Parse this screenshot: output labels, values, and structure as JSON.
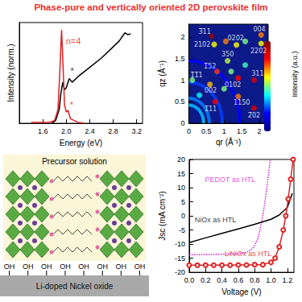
{
  "title": "Phase-pure and vertically oriented 2D perovskite film",
  "chart_data": [
    {
      "type": "line",
      "x_label": "Energy (eV)",
      "y_label": "Intensity (norm.)",
      "xlim": [
        1.2,
        3.3
      ],
      "xticks": [
        1.6,
        {
          "value": 2,
          "label": "2.0"
        },
        2.4,
        2.8,
        3.2
      ],
      "ylim": [
        0,
        1.08
      ],
      "tick_labels": "x",
      "series": [
        {
          "color": "#000000",
          "line_style": "solid",
          "x": [
            1.75,
            1.82,
            1.88,
            1.91,
            1.94,
            1.97,
            2.0,
            2.05,
            2.1,
            2.2,
            2.4,
            2.6,
            2.8,
            2.9,
            3.0,
            3.05,
            3.1
          ],
          "values": [
            0.0,
            0.03,
            0.15,
            0.33,
            0.44,
            0.36,
            0.38,
            0.48,
            0.44,
            0.5,
            0.6,
            0.7,
            0.82,
            0.88,
            0.97,
            0.95,
            0.96
          ]
        },
        {
          "color": "#e02020",
          "line_style": "solid",
          "x": [
            1.4,
            1.7,
            1.8,
            1.86,
            1.9,
            1.92,
            1.94,
            1.97,
            2.0,
            2.03,
            2.07,
            2.2,
            2.3
          ],
          "values": [
            0.01,
            0.01,
            0.03,
            0.15,
            0.7,
            1.0,
            0.7,
            0.2,
            0.12,
            0.14,
            0.05,
            0.01,
            0.0
          ]
        }
      ],
      "annotations": [
        {
          "text": "n=4",
          "x": 2.12,
          "y": 0.88,
          "color": "#e02020"
        },
        {
          "text": "*",
          "x": 2.1,
          "y": 0.56,
          "color": "#000000"
        },
        {
          "text": "*",
          "x": 2.09,
          "y": 0.2,
          "color": "#e02020"
        }
      ]
    },
    {
      "type": "scatter",
      "x_label": "qr (Å⁻¹)",
      "y_label": "qz (Å⁻¹)",
      "xlim": [
        0,
        2.25
      ],
      "xticks": [
        0,
        0.5,
        1,
        1.5,
        2
      ],
      "ylim": [
        0,
        2.3
      ],
      "yticks": [
        0,
        0.5,
        1,
        1.5,
        2
      ],
      "rings": {
        "q": [
          0.42,
          0.58,
          0.95,
          1.45
        ],
        "intensity": [
          0.35,
          0.3,
          0.25,
          0.2
        ]
      },
      "spots": {
        "qr": [
          0.65,
          0.72,
          1.05,
          1.35,
          1.6,
          2.05,
          2.05,
          1.1,
          0.8,
          1.4,
          1.85,
          0.1,
          0.6,
          1.4,
          0.75,
          1.85,
          1.2,
          1.6,
          0.3,
          1.0
        ],
        "qz": [
          2.02,
          1.83,
          1.9,
          1.82,
          1.9,
          2.05,
          1.85,
          1.45,
          1.2,
          1.05,
          1.0,
          1.0,
          0.9,
          0.62,
          0.5,
          0.35,
          1.2,
          1.35,
          0.65,
          0.8
        ],
        "intensity": [
          0.95,
          0.6,
          0.7,
          0.6,
          0.5,
          0.7,
          0.6,
          0.55,
          0.75,
          0.8,
          0.85,
          0.5,
          0.65,
          0.7,
          0.8,
          0.85,
          0.5,
          0.45,
          0.4,
          0.5
        ]
      },
      "labels": [
        {
          "text": "3̅11",
          "qr": 0.45,
          "qz": 2.12
        },
        {
          "text": "2102",
          "qr": 0.38,
          "qz": 1.83
        },
        {
          "text": "0202",
          "qr": 1.33,
          "qz": 1.98
        },
        {
          "text": "004",
          "qr": 2.0,
          "qz": 2.18
        },
        {
          "text": "2202",
          "qr": 1.98,
          "qz": 1.68
        },
        {
          "text": "350",
          "qr": 1.1,
          "qz": 1.6
        },
        {
          "text": "1̅52",
          "qr": 0.6,
          "qz": 1.32
        },
        {
          "text": "0102",
          "qr": 1.25,
          "qz": 0.88
        },
        {
          "text": "311",
          "qr": 1.95,
          "qz": 1.15
        },
        {
          "text": "1̅1̅1",
          "qr": 0.22,
          "qz": 1.12
        },
        {
          "text": "002",
          "qr": 0.62,
          "qz": 0.75
        },
        {
          "text": "1150",
          "qr": 1.5,
          "qz": 0.48
        },
        {
          "text": "1̅11",
          "qr": 0.62,
          "qz": 0.32
        },
        {
          "text": "2̅02",
          "qr": 1.85,
          "qz": 0.18
        }
      ],
      "colorbar": {
        "label": "Intensity (a.u.)",
        "range": [
          0,
          1
        ]
      }
    },
    {
      "type": "line",
      "x_label": "Voltage (V)",
      "y_label": "Jsc (mA cm⁻²)",
      "xlim": [
        0,
        1.28
      ],
      "xticks": [
        {
          "value": 0,
          "label": "0.0"
        },
        0.2,
        0.4,
        0.6,
        0.8,
        {
          "value": 1,
          "label": "1.0"
        },
        1.2
      ],
      "ylim": [
        -20,
        20
      ],
      "yticks": [
        -20,
        -15,
        -10,
        -5,
        0,
        5,
        10,
        15,
        20
      ],
      "series": [
        {
          "color": "#d61ed6",
          "line_style": "dotted",
          "x": [
            0,
            0.2,
            0.4,
            0.6,
            0.7,
            0.78,
            0.84,
            0.88,
            0.91,
            0.94,
            0.97,
            0.99
          ],
          "values": [
            -13.8,
            -13.7,
            -13.6,
            -13.4,
            -13.0,
            -11.5,
            -8.0,
            -3.0,
            2.0,
            8.0,
            15.0,
            20.0
          ]
        },
        {
          "color": "#000000",
          "line_style": "solid",
          "x": [
            0,
            0.2,
            0.4,
            0.6,
            0.8,
            1.0,
            1.1,
            1.2,
            1.26
          ],
          "values": [
            -9.5,
            -7.8,
            -6.2,
            -4.6,
            -3.0,
            -1.2,
            0.3,
            3.0,
            8.0
          ]
        },
        {
          "color": "#e02020",
          "line_style": "solid",
          "marker": "open_circle",
          "x": [
            0,
            0.1,
            0.2,
            0.3,
            0.4,
            0.5,
            0.6,
            0.7,
            0.8,
            0.9,
            1.0,
            1.05,
            1.1,
            1.15,
            1.18,
            1.21,
            1.24,
            1.27
          ],
          "values": [
            -17.5,
            -17.5,
            -17.5,
            -17.5,
            -17.5,
            -17.5,
            -17.4,
            -17.4,
            -17.3,
            -17.3,
            -16.5,
            -15.0,
            -11.0,
            -5.0,
            0.0,
            6.0,
            13.0,
            20.0
          ]
        }
      ],
      "annotations": [
        {
          "text": "PEDOT as HTL",
          "x": 0.5,
          "y": 13,
          "color": "#d61ed6"
        },
        {
          "text": "NiOx as HTL",
          "x": 0.32,
          "y": -1.5,
          "color": "#000000"
        },
        {
          "text": "LiNiOx as HTL",
          "x": 0.72,
          "y": -13.5,
          "color": "#e02020"
        }
      ]
    }
  ],
  "schematic": {
    "solution_label": "Precursor solution",
    "substrate_label": "Li-doped Nickel oxide",
    "surface_group": "OH",
    "surface_group_count": 8
  }
}
